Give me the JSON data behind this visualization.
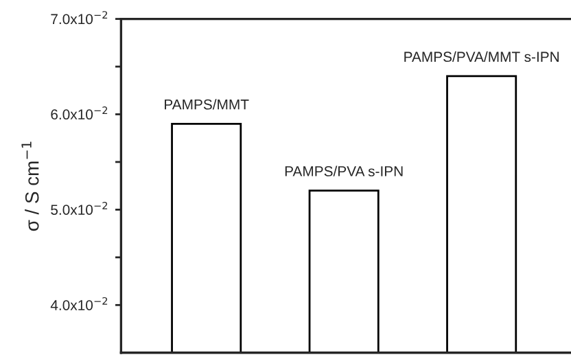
{
  "chart_data": {
    "type": "bar",
    "ylabel": "σ / S cm$^{−1}$",
    "categories": [
      "PAMPS/MMT",
      "PAMPS/PVA s-IPN",
      "PAMPS/PVA/MMT s-IPN"
    ],
    "values": [
      0.059,
      0.052,
      0.064
    ],
    "color": "#ffffff",
    "ylim": [
      0.035,
      0.07
    ],
    "yticks": [
      {
        "value": 0.04,
        "label": "4.0x10$^{−2}$"
      },
      {
        "value": 0.045,
        "label": null
      },
      {
        "value": 0.05,
        "label": "5.0x10$^{−2}$"
      },
      {
        "value": 0.055,
        "label": null
      },
      {
        "value": 0.06,
        "label": "6.0x10$^{−2}$"
      },
      {
        "value": 0.065,
        "label": null
      },
      {
        "value": 0.07,
        "label": "7.0x10$^{−2}$"
      }
    ],
    "grid": false,
    "legend": false
  }
}
